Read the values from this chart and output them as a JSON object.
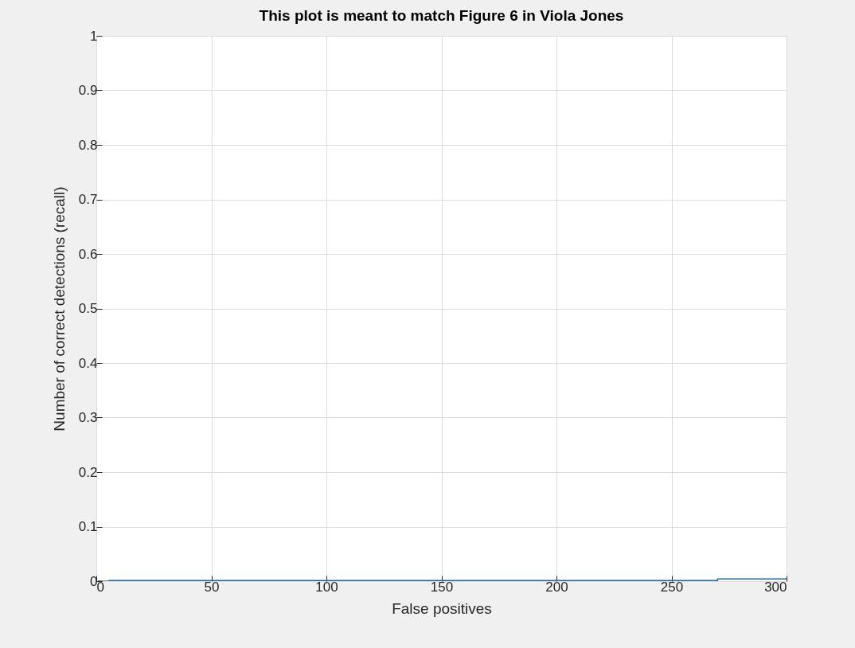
{
  "chart_data": {
    "type": "step",
    "title": "This plot is meant to match Figure 6 in Viola Jones",
    "xlabel": "False positives",
    "ylabel": "Number of correct detections (recall)",
    "x": [
      0.6,
      5.5,
      270,
      300
    ],
    "series": [
      {
        "color": "#0072bd",
        "values": [
          0,
          0.001,
          0.004,
          0.004
        ]
      }
    ],
    "xlim": [
      0,
      300
    ],
    "xticks": [
      0,
      50,
      100,
      150,
      200,
      250,
      300
    ],
    "ylim": [
      0,
      1
    ],
    "yticks": [
      0,
      0.1,
      0.2,
      0.3,
      0.4,
      0.5,
      0.6,
      0.7,
      0.8,
      0.9,
      1
    ],
    "grid": true
  }
}
